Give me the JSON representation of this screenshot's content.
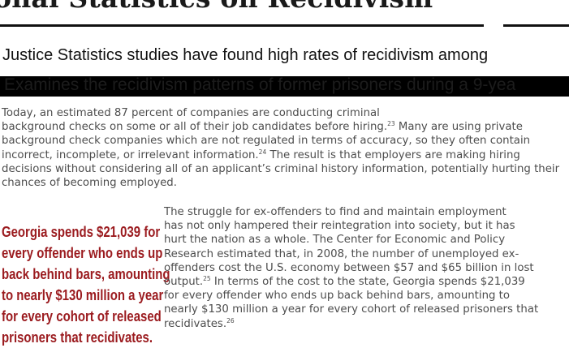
{
  "page": {
    "title": "onal Statistics on Recidivism",
    "subtitle": "Justice Statistics studies have found high rates of recidivism among",
    "banner": "Examines the recidivism patterns of former prisoners during a 9-yea"
  },
  "paragraph1": {
    "lines": [
      {
        "text": "Today, an estimated 87 percent of companies are conducting criminal"
      },
      {
        "text": "background checks on some or all of their job candidates before hiring.",
        "sup": "23",
        "after": " Many are using private"
      },
      {
        "text": "background check companies which are not regulated in terms of accuracy, so they often contain"
      },
      {
        "text": "incorrect, incomplete, or irrelevant information.",
        "sup": "24",
        "after": " The result is that employers are making hiring"
      },
      {
        "text": "decisions without considering all of an applicant’s criminal history information, potentially hurting their"
      },
      {
        "text": "chances of becoming employed."
      }
    ]
  },
  "paragraph2": {
    "lines": [
      {
        "text": "The struggle for ex-offenders to find and maintain employment"
      },
      {
        "text": "has not only hampered their reintegration into society, but it has"
      },
      {
        "text": "hurt the nation as a whole. The Center for Economic and Policy"
      },
      {
        "text": "Research estimated that, in 2008, the number of unemployed ex-"
      },
      {
        "text": "offenders cost the U.S. economy between $57 and $65 billion in lost"
      },
      {
        "text": "output.",
        "sup": "25",
        "after": " In terms of the cost to the state, Georgia spends $21,039"
      },
      {
        "text": "for every offender who ends up back behind bars, amounting to"
      },
      {
        "text": "nearly $130 million a year for every cohort of released prisoners that"
      },
      {
        "text": "recidivates.",
        "sup": "26",
        "after": ""
      }
    ]
  },
  "pullquote": {
    "lines": [
      "Georgia spends $21,039 for",
      "every offender who ends up",
      "back behind bars, amounting",
      "to nearly $130 million a year",
      "for every cohort of released",
      "prisoners that recidivates."
    ]
  },
  "colors": {
    "body_text": "#4d4d4d",
    "pullquote": "#9b1b1f",
    "banner": "#000000",
    "rule": "#111111"
  }
}
